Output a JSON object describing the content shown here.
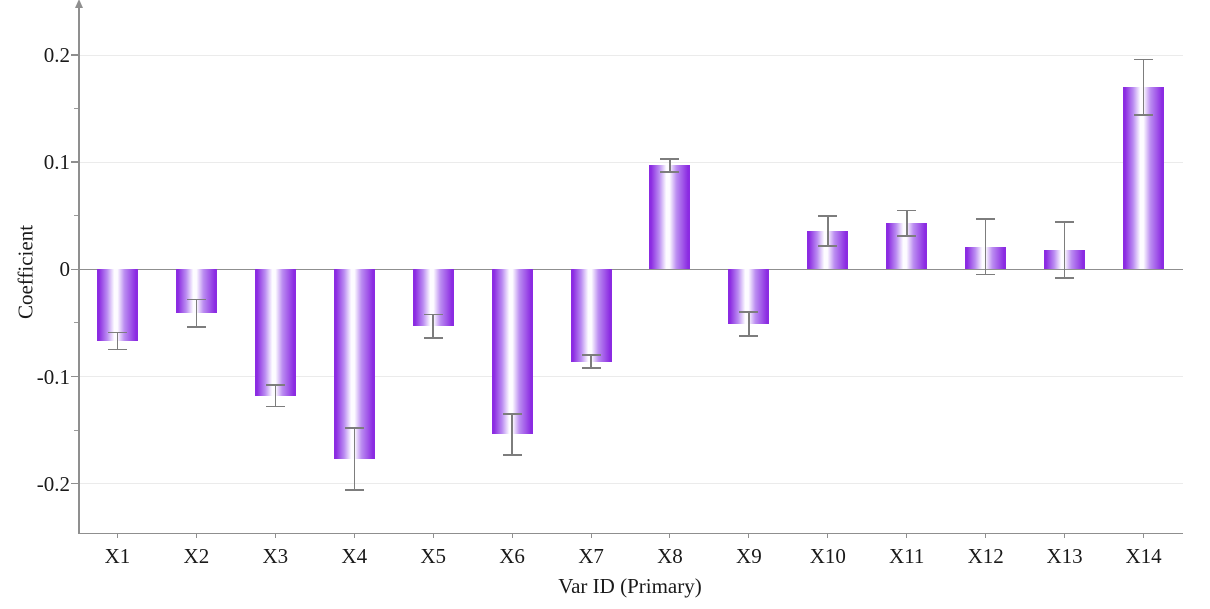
{
  "chart_data": {
    "type": "bar",
    "title": "",
    "xlabel": "Var ID (Primary)",
    "ylabel": "Coefficient",
    "categories": [
      "X1",
      "X2",
      "X3",
      "X4",
      "X5",
      "X6",
      "X7",
      "X8",
      "X9",
      "X10",
      "X11",
      "X12",
      "X13",
      "X14"
    ],
    "values": [
      -0.067,
      -0.041,
      -0.118,
      -0.177,
      -0.053,
      -0.154,
      -0.086,
      0.097,
      -0.051,
      0.036,
      0.043,
      0.021,
      0.018,
      0.17
    ],
    "errors": [
      0.008,
      0.013,
      0.01,
      0.029,
      0.011,
      0.019,
      0.006,
      0.006,
      0.011,
      0.014,
      0.012,
      0.026,
      0.026,
      0.026
    ],
    "error_bars": true,
    "ylim": [
      -0.246,
      0.242
    ],
    "yticks": [
      0.2,
      0.1,
      0,
      -0.1,
      -0.2
    ],
    "ytick_labels": [
      "0.2",
      "0.1",
      "0",
      "-0.1",
      "-0.2"
    ],
    "yticks_minor": [
      0.15,
      0.05,
      -0.05,
      -0.15
    ],
    "grid": "horizontal",
    "legend": "none"
  },
  "style": {
    "background": "#ffffff",
    "bar_edge_color": "#8b2be2",
    "bar_mid_color": "#bb8df1",
    "bar_highlight_color": "#fdfcff",
    "error_bar_color": "#7d7d7d",
    "axis_color": "#8f8f8f",
    "grid_color": "#ebebeb",
    "text_color": "#1a1a1a"
  }
}
